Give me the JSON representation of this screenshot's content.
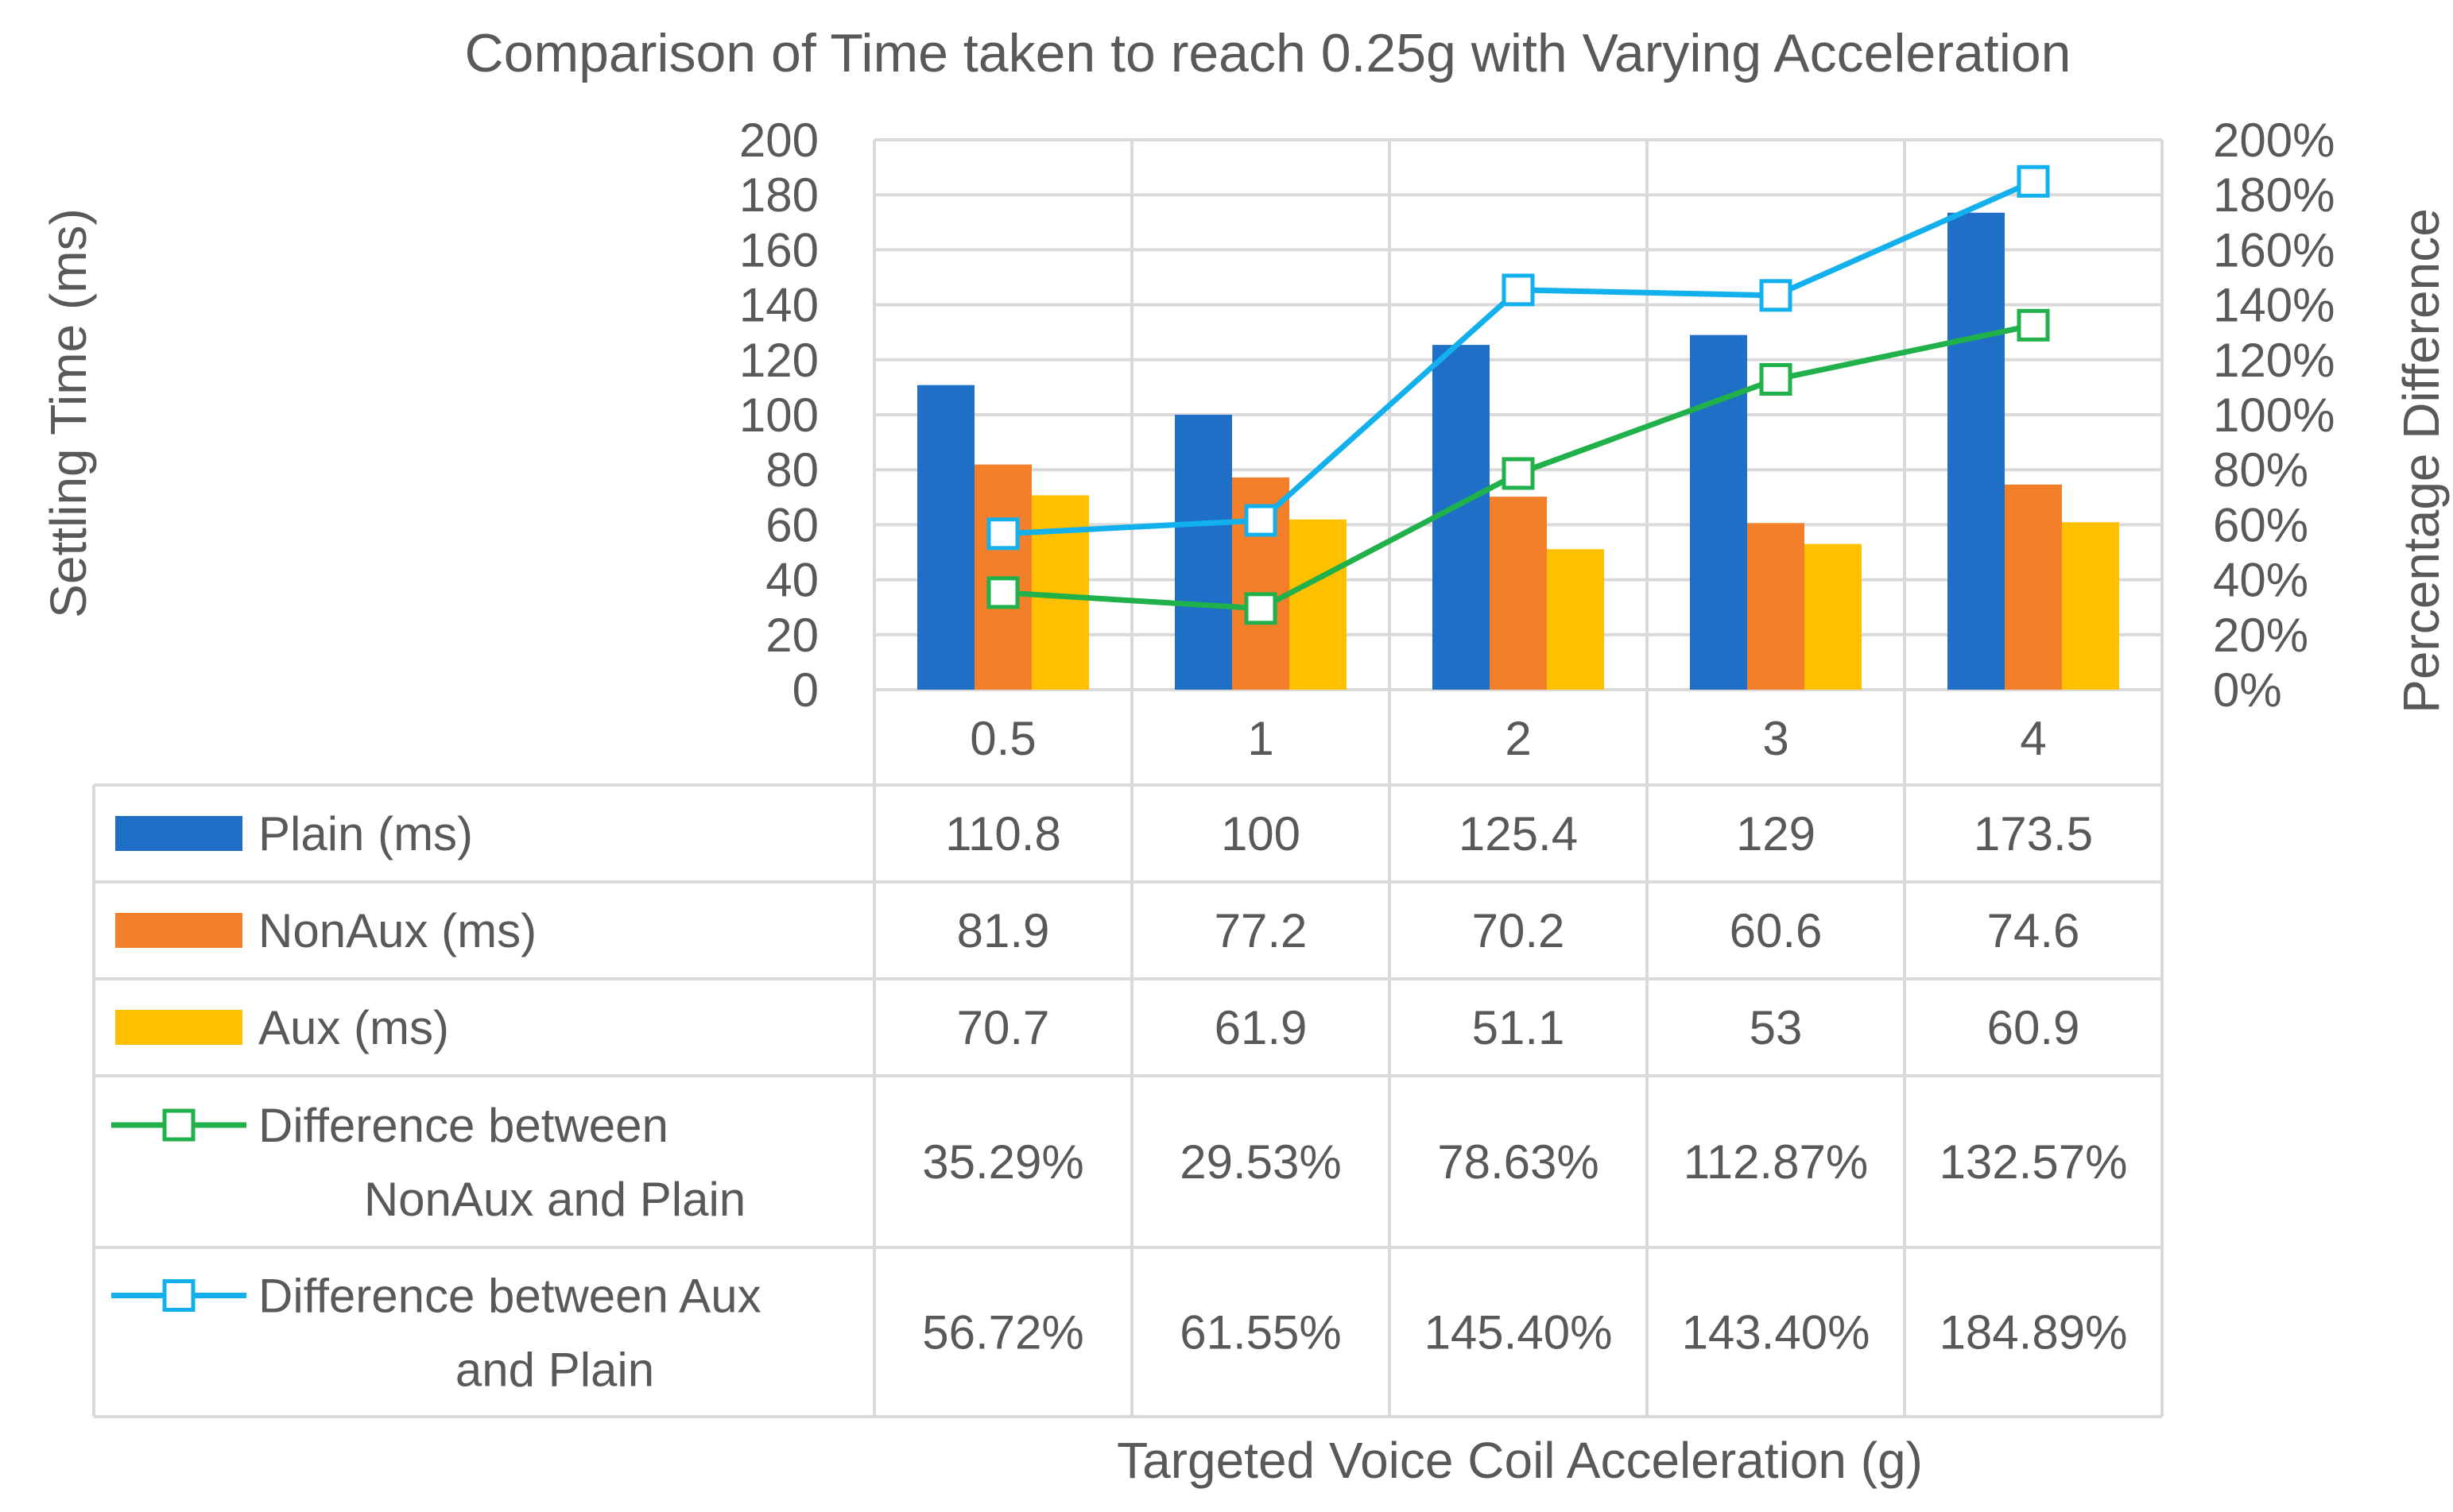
{
  "chart_data": {
    "type": "bar",
    "title": "Comparison of Time taken to reach 0.25g with Varying Acceleration",
    "xlabel": "Targeted Voice Coil Acceleration (g)",
    "ylabel": "Settling Time (ms)",
    "y2label": "Percentage Difference",
    "ylim": [
      0,
      200
    ],
    "y2lim": [
      0,
      200
    ],
    "yticks": [
      "0",
      "20",
      "40",
      "60",
      "80",
      "100",
      "120",
      "140",
      "160",
      "180",
      "200"
    ],
    "y2ticks": [
      "0%",
      "20%",
      "40%",
      "60%",
      "80%",
      "100%",
      "120%",
      "140%",
      "160%",
      "180%",
      "200%"
    ],
    "categories": [
      "0.5",
      "1",
      "2",
      "3",
      "4"
    ],
    "series": [
      {
        "name": "Plain (ms)",
        "kind": "bar",
        "axis": "left",
        "color": "#1f6fc6",
        "values": [
          110.8,
          100,
          125.4,
          129,
          173.5
        ],
        "labels": [
          "110.8",
          "100",
          "125.4",
          "129",
          "173.5"
        ]
      },
      {
        "name": "NonAux (ms)",
        "kind": "bar",
        "axis": "left",
        "color": "#f47f2b",
        "values": [
          81.9,
          77.2,
          70.2,
          60.6,
          74.6
        ],
        "labels": [
          "81.9",
          "77.2",
          "70.2",
          "60.6",
          "74.6"
        ]
      },
      {
        "name": "Aux (ms)",
        "kind": "bar",
        "axis": "left",
        "color": "#ffc000",
        "values": [
          70.7,
          61.9,
          51.1,
          53,
          60.9
        ],
        "labels": [
          "70.7",
          "61.9",
          "51.1",
          "53",
          "60.9"
        ]
      },
      {
        "name": "Difference between NonAux and Plain",
        "name_lines": [
          "Difference between",
          "NonAux and Plain"
        ],
        "kind": "line",
        "axis": "right",
        "color": "#21b14b",
        "values": [
          35.29,
          29.53,
          78.63,
          112.87,
          132.57
        ],
        "labels": [
          "35.29%",
          "29.53%",
          "78.63%",
          "112.87%",
          "132.57%"
        ]
      },
      {
        "name": "Difference between Aux and Plain",
        "name_lines": [
          "Difference between Aux",
          "and Plain"
        ],
        "kind": "line",
        "axis": "right",
        "color": "#12b0ec",
        "values": [
          56.72,
          61.55,
          145.4,
          143.4,
          184.89
        ],
        "labels": [
          "56.72%",
          "61.55%",
          "145.40%",
          "143.40%",
          "184.89%"
        ]
      }
    ]
  }
}
